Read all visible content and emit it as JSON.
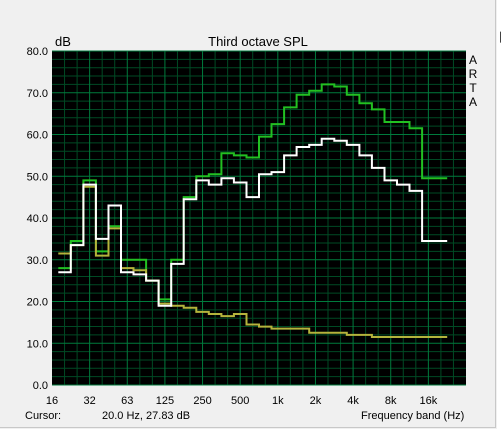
{
  "chart_data": {
    "type": "line",
    "title": "Third octave SPL",
    "ylabel": "dB",
    "xlabel": "Frequency band (Hz)",
    "side_label": [
      "A",
      "R",
      "T",
      "A"
    ],
    "ylim": [
      0,
      80
    ],
    "y_ticks": [
      "0.0",
      "10.0",
      "20.0",
      "30.0",
      "40.0",
      "50.0",
      "60.0",
      "70.0",
      "80.0"
    ],
    "x_ticks": [
      "16",
      "32",
      "63",
      "125",
      "250",
      "500",
      "1k",
      "2k",
      "4k",
      "8k",
      "16k"
    ],
    "grid": true,
    "bands": [
      "20",
      "25",
      "31.5",
      "40",
      "50",
      "63",
      "80",
      "100",
      "125",
      "160",
      "200",
      "250",
      "315",
      "400",
      "500",
      "630",
      "800",
      "1k",
      "1.25k",
      "1.6k",
      "2k",
      "2.5k",
      "3.15k",
      "4k",
      "5k",
      "6.3k",
      "8k",
      "10k",
      "12.5k",
      "16k",
      "20k"
    ],
    "series": [
      {
        "color": "#22c022",
        "values": [
          28,
          34.5,
          49,
          32,
          38,
          30,
          30,
          25,
          20.5,
          30,
          45,
          50,
          50.5,
          55.5,
          55,
          54.5,
          59.5,
          62.5,
          66.5,
          69.5,
          70.5,
          72,
          71.5,
          69.5,
          67.5,
          66,
          63,
          63,
          61.5,
          49.5,
          49.5
        ]
      },
      {
        "color": "#b4b43c",
        "values": [
          31.5,
          33.5,
          47.5,
          31,
          37.5,
          28,
          27.5,
          25,
          19.5,
          19,
          18.5,
          17.5,
          17,
          16.5,
          17,
          14.5,
          14,
          13.5,
          13.5,
          13.5,
          12.5,
          12.5,
          12.5,
          12,
          12,
          11.5,
          11.5,
          11.5,
          11.5,
          11.5,
          11.5
        ]
      },
      {
        "color": "#ffffff",
        "values": [
          27,
          33.5,
          48,
          35,
          43,
          27,
          26.5,
          25,
          19,
          29,
          44.5,
          49,
          48,
          49.5,
          48.5,
          45,
          50.5,
          51,
          55,
          57,
          57.5,
          59,
          58.5,
          57.5,
          55,
          52,
          49,
          48,
          46.5,
          34.5,
          34.5
        ]
      }
    ]
  },
  "status": {
    "cursor_label": "Cursor:",
    "cursor_value": "20.0 Hz, 27.83 dB",
    "band_label": "Frequency band (Hz)"
  },
  "colors": {
    "plot_bg": "#000000",
    "grid_major": "#007a3c",
    "grid_minor": "#004a24"
  }
}
